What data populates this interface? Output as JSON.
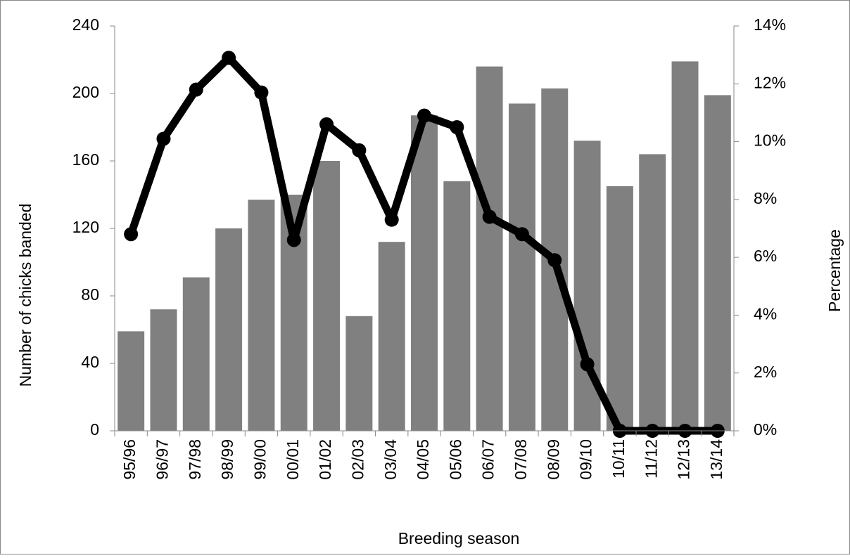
{
  "chart_data": {
    "type": "combo",
    "x_label": "Breeding season",
    "y_label": "Number of chicks banded",
    "y2_label": "Percentage",
    "categories": [
      "95/96",
      "96/97",
      "97/98",
      "98/99",
      "99/00",
      "00/01",
      "01/02",
      "02/03",
      "03/04",
      "04/05",
      "05/06",
      "06/07",
      "07/08",
      "08/09",
      "09/10",
      "10/11",
      "11/12",
      "12/13",
      "13/14"
    ],
    "series": [
      {
        "type": "bar",
        "color": "#808080",
        "values": [
          59,
          72,
          91,
          120,
          137,
          140,
          160,
          68,
          112,
          187,
          148,
          216,
          194,
          203,
          172,
          145,
          164,
          219,
          199
        ]
      },
      {
        "type": "line",
        "axis": "y2",
        "color": "#000000",
        "values": [
          6.8,
          10.1,
          11.8,
          12.9,
          11.7,
          6.6,
          10.6,
          9.7,
          7.3,
          10.9,
          10.5,
          7.4,
          6.8,
          5.9,
          2.3,
          0,
          0,
          0,
          0
        ]
      }
    ],
    "ylim": [
      0,
      240
    ],
    "yticks": [
      0,
      40,
      80,
      120,
      160,
      200,
      240
    ],
    "y2lim": [
      0,
      14
    ],
    "y2ticks": [
      {
        "value": 0,
        "label": "0%"
      },
      {
        "value": 2,
        "label": "2%"
      },
      {
        "value": 4,
        "label": "4%"
      },
      {
        "value": 6,
        "label": "6%"
      },
      {
        "value": 8,
        "label": "8%"
      },
      {
        "value": 10,
        "label": "10%"
      },
      {
        "value": 12,
        "label": "12%"
      },
      {
        "value": 14,
        "label": "14%"
      }
    ]
  }
}
